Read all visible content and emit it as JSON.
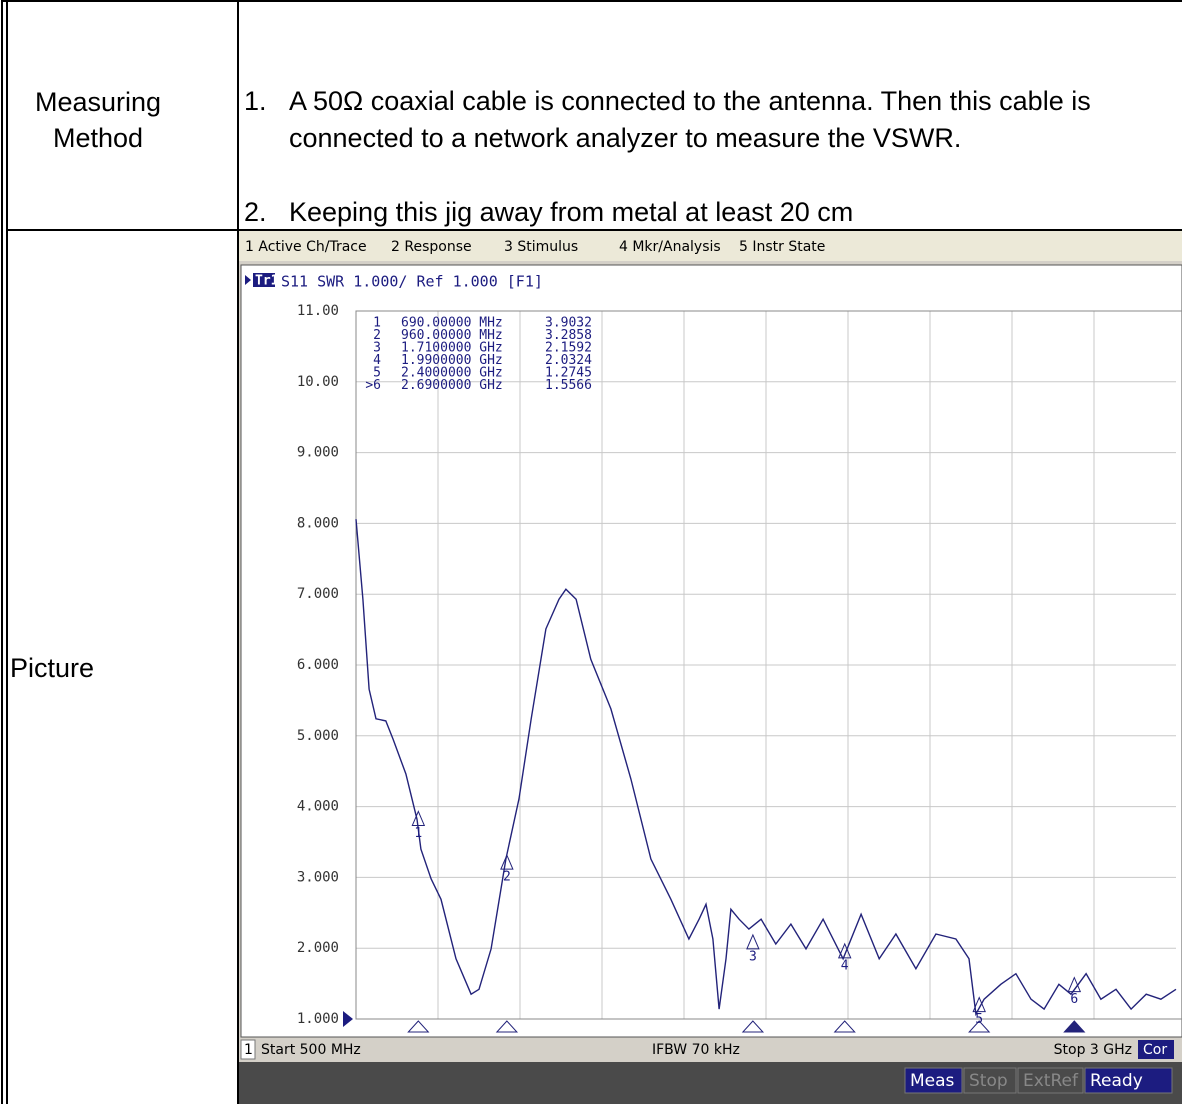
{
  "table": {
    "rows": [
      {
        "label": [
          "Measuring",
          "Method"
        ],
        "steps": [
          {
            "num": "1.",
            "text": "A 50Ω coaxial cable is connected to the antenna. Then this cable is connected to a network analyzer to measure the VSWR."
          },
          {
            "num": "2.",
            "text": "Keeping this jig away from metal at least 20 cm"
          }
        ]
      },
      {
        "label": [
          "Picture"
        ]
      }
    ]
  },
  "analyzer": {
    "menu": [
      "1 Active Ch/Trace",
      "2 Response",
      "3 Stimulus",
      "4 Mkr/Analysis",
      "5 Instr State"
    ],
    "trace": "Tr1",
    "trace_header": "S11 SWR 1.000/ Ref 1.000 [F1]",
    "footer": {
      "channel": "1",
      "start": "Start 500 MHz",
      "ifbw": "IFBW 70 kHz",
      "stop": "Stop 3 GHz",
      "cor": "Cor"
    },
    "status": [
      "Meas",
      "Stop",
      "ExtRef",
      "Ready"
    ]
  },
  "chart_data": {
    "type": "line",
    "color": "#23237a",
    "grid": true,
    "xlim": [
      500,
      3000
    ],
    "ylim": [
      1,
      11
    ],
    "yticks": [
      {
        "value": 11,
        "label": "11.00"
      },
      {
        "value": 10,
        "label": "10.00"
      },
      {
        "value": 9,
        "label": "9.000"
      },
      {
        "value": 8,
        "label": "8.000"
      },
      {
        "value": 7,
        "label": "7.000"
      },
      {
        "value": 6,
        "label": "6.000"
      },
      {
        "value": 5,
        "label": "5.000"
      },
      {
        "value": 4,
        "label": "4.000"
      },
      {
        "value": 3,
        "label": "3.000"
      },
      {
        "value": 2,
        "label": "2.000"
      },
      {
        "value": 1,
        "label": "1.000"
      }
    ],
    "x": [
      500,
      521,
      540,
      561,
      591,
      613,
      652,
      686,
      698,
      729,
      759,
      805,
      851,
      875,
      912,
      957,
      997,
      1034,
      1079,
      1119,
      1140,
      1171,
      1216,
      1277,
      1338,
      1399,
      1460,
      1515,
      1546,
      1567,
      1588,
      1607,
      1628,
      1643,
      1668,
      1698,
      1735,
      1780,
      1826,
      1872,
      1924,
      1985,
      2040,
      2095,
      2146,
      2207,
      2268,
      2329,
      2369,
      2390,
      2415,
      2466,
      2512,
      2558,
      2598,
      2643,
      2680,
      2726,
      2771,
      2817,
      2863,
      2909,
      2954,
      3000
    ],
    "values": [
      8.06,
      6.93,
      5.66,
      5.24,
      5.21,
      4.95,
      4.46,
      3.82,
      3.4,
      2.98,
      2.69,
      1.85,
      1.35,
      1.42,
      1.99,
      3.26,
      4.11,
      5.24,
      6.51,
      6.93,
      7.07,
      6.93,
      6.08,
      5.38,
      4.39,
      3.26,
      2.69,
      2.13,
      2.41,
      2.62,
      2.13,
      1.14,
      1.85,
      2.55,
      2.41,
      2.27,
      2.41,
      2.06,
      2.34,
      1.99,
      2.41,
      1.85,
      2.48,
      1.85,
      2.2,
      1.71,
      2.2,
      2.13,
      1.85,
      1.07,
      1.28,
      1.49,
      1.64,
      1.28,
      1.14,
      1.49,
      1.35,
      1.64,
      1.28,
      1.42,
      1.14,
      1.35,
      1.28,
      1.42
    ],
    "markers": [
      {
        "id": "1",
        "chart_label": "1",
        "x": {
          "value": 690,
          "label": "690.00000 MHz"
        },
        "value": 3.9032
      },
      {
        "id": "2",
        "chart_label": "2",
        "x": {
          "value": 960,
          "label": "960.00000 MHz"
        },
        "value": 3.2858
      },
      {
        "id": "3",
        "chart_label": "3",
        "x": {
          "value": 1710,
          "label": "1.7100000 GHz"
        },
        "value": 2.1592
      },
      {
        "id": "4",
        "chart_label": "4",
        "x": {
          "value": 1990,
          "label": "1.9900000 GHz"
        },
        "value": 2.0324
      },
      {
        "id": "5",
        "chart_label": "5",
        "x": {
          "value": 2400,
          "label": "2.4000000 GHz"
        },
        "value": 1.2745
      },
      {
        "id": ">6",
        "chart_label": "6",
        "x": {
          "value": 2690,
          "label": "2.6900000 GHz"
        },
        "value": 1.5566
      }
    ]
  }
}
